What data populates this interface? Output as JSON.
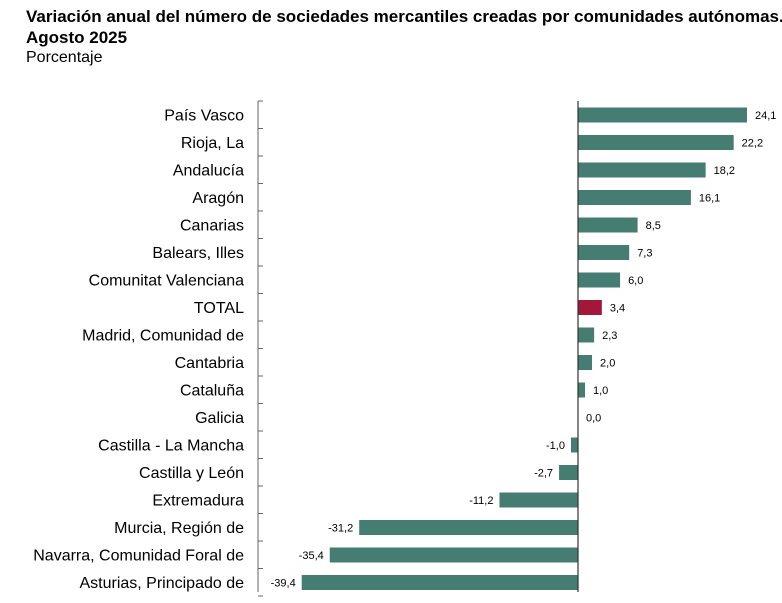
{
  "title": {
    "line1": "Variación anual del número de sociedades mercantiles creadas por comunidades autónomas.",
    "line2": "Agosto 2025"
  },
  "subtitle": "Porcentaje",
  "colors": {
    "bar": "#457d72",
    "highlight": "#a3173a",
    "axis": "#333333"
  },
  "chart_data": {
    "type": "bar",
    "orientation": "horizontal",
    "title": "Variación anual del número de sociedades mercantiles creadas por comunidades autónomas. Agosto 2025",
    "ylabel": "Porcentaje",
    "categories": [
      "País Vasco",
      "Rioja, La",
      "Andalucía",
      "Aragón",
      "Canarias",
      "Balears, Illes",
      "Comunitat Valenciana",
      "TOTAL",
      "Madrid, Comunidad de",
      "Cantabria",
      "Cataluña",
      "Galicia",
      "Castilla - La Mancha",
      "Castilla y León",
      "Extremadura",
      "Murcia, Región de",
      "Navarra, Comunidad Foral de",
      "Asturias, Principado de"
    ],
    "values": [
      24.1,
      22.2,
      18.2,
      16.1,
      8.5,
      7.3,
      6.0,
      3.4,
      2.3,
      2.0,
      1.0,
      0.0,
      -1.0,
      -2.7,
      -11.2,
      -31.2,
      -35.4,
      -39.4
    ],
    "value_labels": [
      "24,1",
      "22,2",
      "18,2",
      "16,1",
      "8,5",
      "7,3",
      "6,0",
      "3,4",
      "2,3",
      "2,0",
      "1,0",
      "0,0",
      "-1,0",
      "-2,7",
      "-11,2",
      "-31,2",
      "-35,4",
      "-39,4"
    ],
    "highlight_category": "TOTAL",
    "xlim": [
      -45,
      24.1
    ],
    "grid": false
  }
}
